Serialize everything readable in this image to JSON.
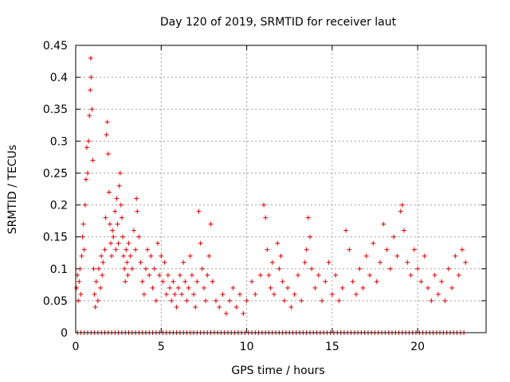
{
  "chart_data": {
    "type": "scatter",
    "title": "Day 120 of 2019, SRMTID for receiver laut",
    "xlabel": "GPS time / hours",
    "ylabel": "SRMTID / TECUs",
    "xlim": [
      0,
      24
    ],
    "ylim": [
      0,
      0.45
    ],
    "xticks": [
      0,
      5,
      10,
      15,
      20
    ],
    "xtick_labels": [
      "0",
      "5",
      "10",
      "15",
      "20"
    ],
    "yticks": [
      0,
      0.05,
      0.1,
      0.15,
      0.2,
      0.25,
      0.3,
      0.35,
      0.4,
      0.45
    ],
    "ytick_labels": [
      "0",
      "0.05",
      "0.1",
      "0.15",
      "0.2",
      "0.25",
      "0.3",
      "0.35",
      "0.4",
      "0.45"
    ],
    "grid": true,
    "marker": "+",
    "color": "#e00000",
    "series": [
      {
        "name": "SRMTID",
        "points": [
          [
            0.05,
            0.07
          ],
          [
            0.1,
            0.09
          ],
          [
            0.15,
            0.05
          ],
          [
            0.2,
            0.08
          ],
          [
            0.25,
            0.1
          ],
          [
            0.3,
            0.06
          ],
          [
            0.35,
            0.12
          ],
          [
            0.4,
            0.15
          ],
          [
            0.45,
            0.17
          ],
          [
            0.5,
            0.13
          ],
          [
            0.55,
            0.2
          ],
          [
            0.6,
            0.24
          ],
          [
            0.65,
            0.29
          ],
          [
            0.7,
            0.25
          ],
          [
            0.75,
            0.3
          ],
          [
            0.8,
            0.34
          ],
          [
            0.85,
            0.38
          ],
          [
            0.88,
            0.43
          ],
          [
            0.9,
            0.4
          ],
          [
            0.95,
            0.35
          ],
          [
            1.0,
            0.27
          ],
          [
            1.05,
            0.1
          ],
          [
            1.1,
            0.06
          ],
          [
            1.15,
            0.04
          ],
          [
            1.2,
            0.08
          ],
          [
            1.3,
            0.05
          ],
          [
            1.35,
            0.1
          ],
          [
            1.45,
            0.07
          ],
          [
            1.5,
            0.12
          ],
          [
            1.55,
            0.09
          ],
          [
            1.6,
            0.11
          ],
          [
            1.7,
            0.13
          ],
          [
            1.75,
            0.18
          ],
          [
            1.8,
            0.31
          ],
          [
            1.85,
            0.33
          ],
          [
            1.9,
            0.28
          ],
          [
            1.95,
            0.22
          ],
          [
            2.0,
            0.17
          ],
          [
            2.05,
            0.14
          ],
          [
            2.1,
            0.12
          ],
          [
            2.15,
            0.16
          ],
          [
            2.2,
            0.15
          ],
          [
            2.3,
            0.19
          ],
          [
            2.35,
            0.13
          ],
          [
            2.4,
            0.21
          ],
          [
            2.45,
            0.17
          ],
          [
            2.5,
            0.14
          ],
          [
            2.55,
            0.23
          ],
          [
            2.6,
            0.25
          ],
          [
            2.65,
            0.2
          ],
          [
            2.7,
            0.18
          ],
          [
            2.75,
            0.15
          ],
          [
            2.8,
            0.12
          ],
          [
            2.85,
            0.1
          ],
          [
            2.9,
            0.08
          ],
          [
            2.95,
            0.13
          ],
          [
            3.0,
            0.11
          ],
          [
            3.05,
            0.09
          ],
          [
            3.1,
            0.14
          ],
          [
            3.2,
            0.12
          ],
          [
            3.3,
            0.1
          ],
          [
            3.4,
            0.16
          ],
          [
            3.5,
            0.13
          ],
          [
            3.55,
            0.21
          ],
          [
            3.6,
            0.19
          ],
          [
            3.7,
            0.15
          ],
          [
            3.8,
            0.11
          ],
          [
            3.9,
            0.08
          ],
          [
            4.0,
            0.06
          ],
          [
            4.1,
            0.1
          ],
          [
            4.2,
            0.13
          ],
          [
            4.3,
            0.09
          ],
          [
            4.4,
            0.12
          ],
          [
            4.5,
            0.07
          ],
          [
            4.6,
            0.1
          ],
          [
            4.7,
            0.05
          ],
          [
            4.8,
            0.14
          ],
          [
            4.9,
            0.09
          ],
          [
            5.0,
            0.12
          ],
          [
            5.1,
            0.08
          ],
          [
            5.2,
            0.11
          ],
          [
            5.3,
            0.06
          ],
          [
            5.4,
            0.09
          ],
          [
            5.5,
            0.07
          ],
          [
            5.6,
            0.05
          ],
          [
            5.7,
            0.08
          ],
          [
            5.8,
            0.06
          ],
          [
            5.9,
            0.04
          ],
          [
            6.0,
            0.07
          ],
          [
            6.1,
            0.09
          ],
          [
            6.2,
            0.06
          ],
          [
            6.3,
            0.11
          ],
          [
            6.4,
            0.08
          ],
          [
            6.5,
            0.05
          ],
          [
            6.6,
            0.07
          ],
          [
            6.7,
            0.12
          ],
          [
            6.8,
            0.09
          ],
          [
            6.9,
            0.06
          ],
          [
            7.0,
            0.04
          ],
          [
            7.1,
            0.08
          ],
          [
            7.2,
            0.19
          ],
          [
            7.3,
            0.14
          ],
          [
            7.4,
            0.1
          ],
          [
            7.5,
            0.07
          ],
          [
            7.6,
            0.05
          ],
          [
            7.7,
            0.09
          ],
          [
            7.8,
            0.12
          ],
          [
            7.9,
            0.17
          ],
          [
            8.0,
            0.08
          ],
          [
            8.2,
            0.05
          ],
          [
            8.4,
            0.04
          ],
          [
            8.6,
            0.06
          ],
          [
            8.8,
            0.03
          ],
          [
            9.0,
            0.05
          ],
          [
            9.2,
            0.07
          ],
          [
            9.4,
            0.04
          ],
          [
            9.6,
            0.06
          ],
          [
            9.8,
            0.03
          ],
          [
            10.0,
            0.05
          ],
          [
            10.3,
            0.08
          ],
          [
            10.5,
            0.06
          ],
          [
            10.8,
            0.09
          ],
          [
            11.0,
            0.2
          ],
          [
            11.1,
            0.18
          ],
          [
            11.2,
            0.13
          ],
          [
            11.3,
            0.09
          ],
          [
            11.4,
            0.07
          ],
          [
            11.5,
            0.11
          ],
          [
            11.6,
            0.06
          ],
          [
            11.8,
            0.14
          ],
          [
            11.9,
            0.1
          ],
          [
            12.0,
            0.12
          ],
          [
            12.1,
            0.08
          ],
          [
            12.2,
            0.05
          ],
          [
            12.4,
            0.07
          ],
          [
            12.6,
            0.04
          ],
          [
            12.8,
            0.06
          ],
          [
            13.0,
            0.09
          ],
          [
            13.2,
            0.05
          ],
          [
            13.4,
            0.11
          ],
          [
            13.5,
            0.13
          ],
          [
            13.6,
            0.18
          ],
          [
            13.7,
            0.15
          ],
          [
            13.8,
            0.1
          ],
          [
            14.0,
            0.07
          ],
          [
            14.2,
            0.09
          ],
          [
            14.4,
            0.05
          ],
          [
            14.6,
            0.08
          ],
          [
            14.8,
            0.11
          ],
          [
            15.0,
            0.06
          ],
          [
            15.2,
            0.09
          ],
          [
            15.4,
            0.05
          ],
          [
            15.6,
            0.07
          ],
          [
            15.8,
            0.16
          ],
          [
            16.0,
            0.13
          ],
          [
            16.2,
            0.08
          ],
          [
            16.4,
            0.06
          ],
          [
            16.6,
            0.1
          ],
          [
            16.8,
            0.07
          ],
          [
            17.0,
            0.12
          ],
          [
            17.2,
            0.09
          ],
          [
            17.4,
            0.14
          ],
          [
            17.6,
            0.08
          ],
          [
            17.8,
            0.11
          ],
          [
            18.0,
            0.17
          ],
          [
            18.2,
            0.13
          ],
          [
            18.4,
            0.1
          ],
          [
            18.6,
            0.15
          ],
          [
            18.8,
            0.12
          ],
          [
            19.0,
            0.19
          ],
          [
            19.1,
            0.2
          ],
          [
            19.2,
            0.16
          ],
          [
            19.4,
            0.11
          ],
          [
            19.6,
            0.09
          ],
          [
            19.8,
            0.13
          ],
          [
            20.0,
            0.1
          ],
          [
            20.2,
            0.08
          ],
          [
            20.4,
            0.12
          ],
          [
            20.6,
            0.07
          ],
          [
            20.8,
            0.05
          ],
          [
            21.0,
            0.09
          ],
          [
            21.2,
            0.06
          ],
          [
            21.4,
            0.08
          ],
          [
            21.6,
            0.05
          ],
          [
            21.8,
            0.1
          ],
          [
            22.0,
            0.07
          ],
          [
            22.2,
            0.12
          ],
          [
            22.4,
            0.09
          ],
          [
            22.6,
            0.13
          ],
          [
            22.8,
            0.11
          ]
        ]
      }
    ],
    "zero_row_x": [
      0.1,
      0.3,
      0.5,
      0.7,
      0.9,
      1.1,
      1.3,
      1.5,
      1.7,
      1.9,
      2.1,
      2.3,
      2.5,
      2.7,
      2.9,
      3.1,
      3.3,
      3.5,
      3.7,
      3.9,
      4.1,
      4.3,
      4.5,
      4.7,
      4.9,
      5.1,
      5.3,
      5.5,
      5.7,
      5.9,
      6.1,
      6.3,
      6.5,
      6.7,
      6.9,
      7.1,
      7.3,
      7.5,
      7.7,
      7.9,
      8.1,
      8.3,
      8.5,
      8.7,
      8.9,
      9.1,
      9.3,
      9.5,
      9.7,
      9.9,
      10.1,
      10.3,
      10.5,
      10.7,
      10.9,
      11.1,
      11.3,
      11.5,
      11.7,
      11.9,
      12.1,
      12.3,
      12.5,
      12.7,
      12.9,
      13.1,
      13.3,
      13.5,
      13.7,
      13.9,
      14.1,
      14.3,
      14.5,
      14.7,
      14.9,
      15.1,
      15.3,
      15.5,
      15.7,
      15.9,
      16.1,
      16.3,
      16.5,
      16.7,
      16.9,
      17.1,
      17.3,
      17.5,
      17.7,
      17.9,
      18.1,
      18.3,
      18.5,
      18.7,
      18.9,
      19.1,
      19.3,
      19.5,
      19.7,
      19.9,
      20.1,
      20.3,
      20.5,
      20.7,
      20.9,
      21.1,
      21.3,
      21.5,
      21.7,
      21.9,
      22.1,
      22.3,
      22.5,
      22.7
    ]
  }
}
